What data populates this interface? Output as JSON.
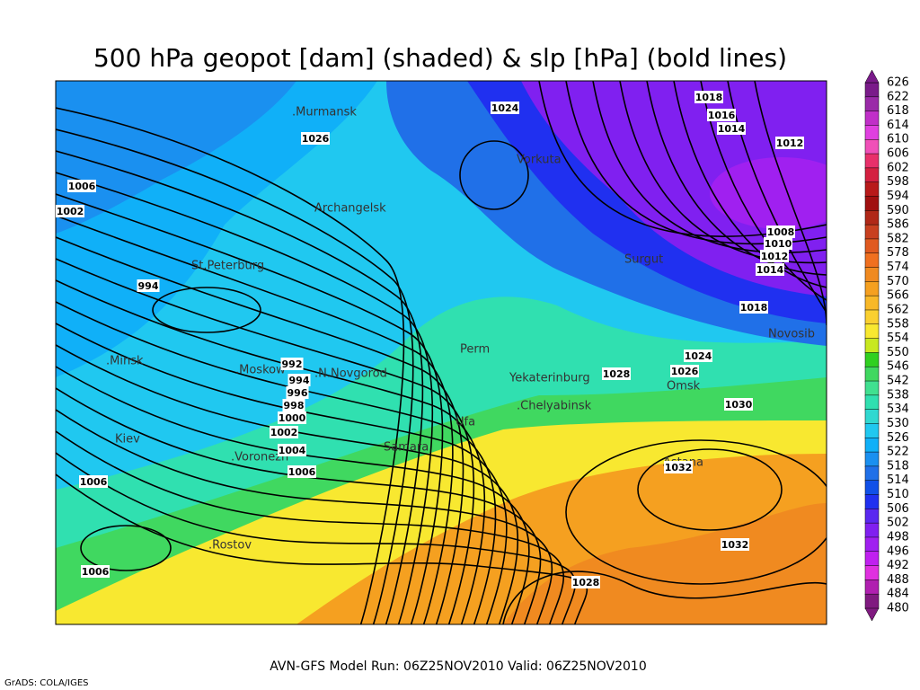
{
  "title": "500 hPa geopot [dam] (shaded) & slp [hPa] (bold lines)",
  "footer": "AVN-GFS Model Run: 06Z25NOV2010 Valid: 06Z25NOV2010",
  "credit": "GrADS: COLA/IGES",
  "cities": [
    ".Murmansk",
    "Archangelsk",
    "Vorkuta",
    "Surgut",
    "Novosib",
    "St.Peterburg",
    ".Minsk",
    ".Moskow",
    ".N.Novgorod",
    "Perm",
    "Yekaterinburg",
    "Omsk",
    ".Chelyabinsk",
    "Ufa",
    "Samara",
    "Kiev",
    ".Voronezh",
    "Astana",
    ".Rostov"
  ],
  "isobar_labels": [
    1024,
    1018,
    1016,
    1014,
    1012,
    1026,
    1006,
    1002,
    994,
    1008,
    1010,
    1012,
    1014,
    1018,
    1024,
    1026,
    1028,
    1030,
    992,
    994,
    996,
    998,
    1000,
    1002,
    1004,
    1006,
    1006,
    1032,
    1032,
    1006,
    1028
  ],
  "colorbar": {
    "labels": [
      626,
      622,
      618,
      614,
      610,
      606,
      602,
      598,
      594,
      590,
      586,
      582,
      578,
      574,
      570,
      566,
      562,
      558,
      554,
      550,
      546,
      542,
      538,
      534,
      530,
      526,
      522,
      518,
      514,
      510,
      506,
      502,
      498,
      496,
      492,
      488,
      484,
      480
    ],
    "colors": [
      "#7a1b8a",
      "#9a2aa8",
      "#c02fc8",
      "#e040e0",
      "#f050b8",
      "#e8306a",
      "#d42040",
      "#b81a1a",
      "#a01010",
      "#b02818",
      "#c84020",
      "#e05a20",
      "#f07020",
      "#f08a20",
      "#f5a020",
      "#f8b828",
      "#fad030",
      "#f8e830",
      "#c8e820",
      "#30d020",
      "#40d860",
      "#40e090",
      "#30e0b0",
      "#30d8d0",
      "#20c8f0",
      "#10b0f8",
      "#1a90f0",
      "#2070e8",
      "#1050e8",
      "#2030f0",
      "#5a28f0",
      "#8020f0",
      "#a020f0",
      "#c020f0",
      "#e030e0",
      "#b020b0",
      "#801a80"
    ]
  }
}
